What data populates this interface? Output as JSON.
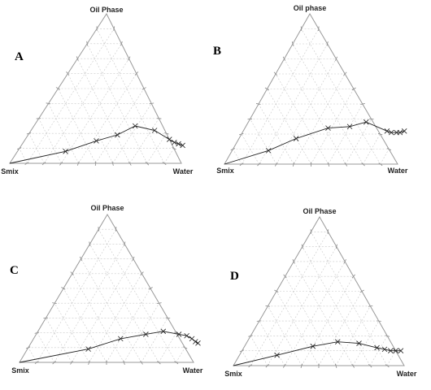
{
  "chart_data": [
    {
      "type": "scatter",
      "panel_label": "A",
      "vertices": {
        "top": "Oil Phase",
        "left": "Smix",
        "right": "Water"
      },
      "grid": true,
      "points": [
        {
          "water": 0.0,
          "oil": 0.0
        },
        {
          "water": 0.28,
          "oil": 0.08
        },
        {
          "water": 0.42,
          "oil": 0.15
        },
        {
          "water": 0.52,
          "oil": 0.19
        },
        {
          "water": 0.59,
          "oil": 0.25
        },
        {
          "water": 0.72,
          "oil": 0.22
        },
        {
          "water": 0.84,
          "oil": 0.16
        },
        {
          "water": 0.88,
          "oil": 0.14
        },
        {
          "water": 0.91,
          "oil": 0.13
        },
        {
          "water": 0.94,
          "oil": 0.12
        }
      ]
    },
    {
      "type": "scatter",
      "panel_label": "B",
      "vertices": {
        "top": "Oil phase",
        "left": "Smix",
        "right": "Water"
      },
      "grid": true,
      "points": [
        {
          "water": 0.0,
          "oil": 0.0
        },
        {
          "water": 0.21,
          "oil": 0.09
        },
        {
          "water": 0.33,
          "oil": 0.17
        },
        {
          "water": 0.48,
          "oil": 0.24
        },
        {
          "water": 0.6,
          "oil": 0.25
        },
        {
          "water": 0.68,
          "oil": 0.28
        },
        {
          "water": 0.83,
          "oil": 0.22
        },
        {
          "water": 0.86,
          "oil": 0.21
        },
        {
          "water": 0.89,
          "oil": 0.21
        },
        {
          "water": 0.91,
          "oil": 0.21
        },
        {
          "water": 0.93,
          "oil": 0.22
        }
      ]
    },
    {
      "type": "scatter",
      "panel_label": "C",
      "vertices": {
        "top": "Oil Phase",
        "left": "Smix",
        "right": "Water"
      },
      "grid": true,
      "points": [
        {
          "water": 0.0,
          "oil": 0.0
        },
        {
          "water": 0.35,
          "oil": 0.09
        },
        {
          "water": 0.5,
          "oil": 0.16
        },
        {
          "water": 0.63,
          "oil": 0.19
        },
        {
          "water": 0.72,
          "oil": 0.21
        },
        {
          "water": 0.82,
          "oil": 0.19
        },
        {
          "water": 0.87,
          "oil": 0.18
        },
        {
          "water": 0.91,
          "oil": 0.16
        },
        {
          "water": 0.94,
          "oil": 0.14
        },
        {
          "water": 0.96,
          "oil": 0.13
        }
      ]
    },
    {
      "type": "scatter",
      "panel_label": "D",
      "vertices": {
        "top": "Oil Phase",
        "left": "Smix",
        "right": "Water"
      },
      "grid": true,
      "points": [
        {
          "water": 0.0,
          "oil": 0.0
        },
        {
          "water": 0.22,
          "oil": 0.07
        },
        {
          "water": 0.4,
          "oil": 0.13
        },
        {
          "water": 0.53,
          "oil": 0.16
        },
        {
          "water": 0.66,
          "oil": 0.15
        },
        {
          "water": 0.78,
          "oil": 0.12
        },
        {
          "water": 0.83,
          "oil": 0.11
        },
        {
          "water": 0.87,
          "oil": 0.1
        },
        {
          "water": 0.9,
          "oil": 0.1
        },
        {
          "water": 0.93,
          "oil": 0.1
        }
      ]
    }
  ]
}
